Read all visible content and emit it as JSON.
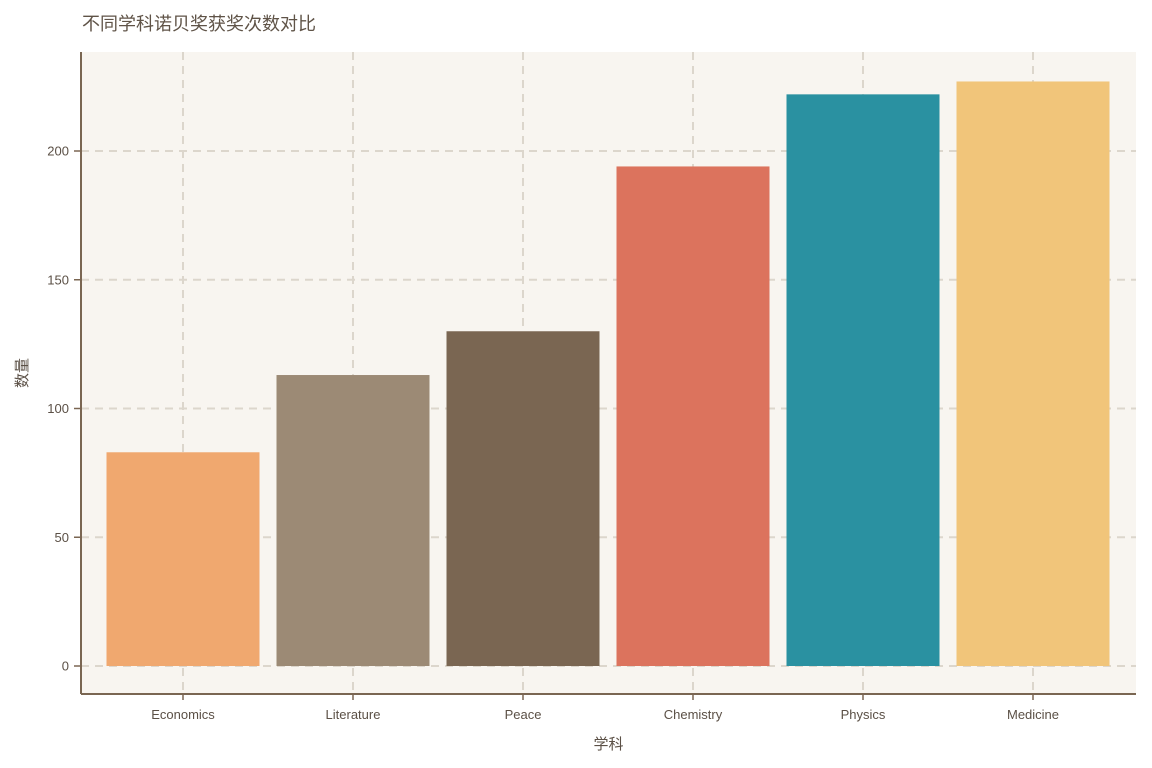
{
  "chart_data": {
    "type": "bar",
    "title": "不同学科诺贝奖获奖次数对比",
    "xlabel": "学科",
    "ylabel": "数量",
    "categories": [
      "Economics",
      "Literature",
      "Peace",
      "Chemistry",
      "Physics",
      "Medicine"
    ],
    "values": [
      83,
      113,
      130,
      194,
      222,
      227
    ],
    "colors": [
      "#F0A86F",
      "#9C8A75",
      "#7A6652",
      "#DC735D",
      "#2A91A1",
      "#F1C57A"
    ],
    "ylim": [
      0,
      240
    ],
    "yticks": [
      0,
      50,
      100,
      150,
      200
    ],
    "grid": true,
    "legend": "none",
    "plot_background": "#F8F5F0",
    "axis_color": "#7A6652",
    "grid_color": "#DCD6CC"
  }
}
